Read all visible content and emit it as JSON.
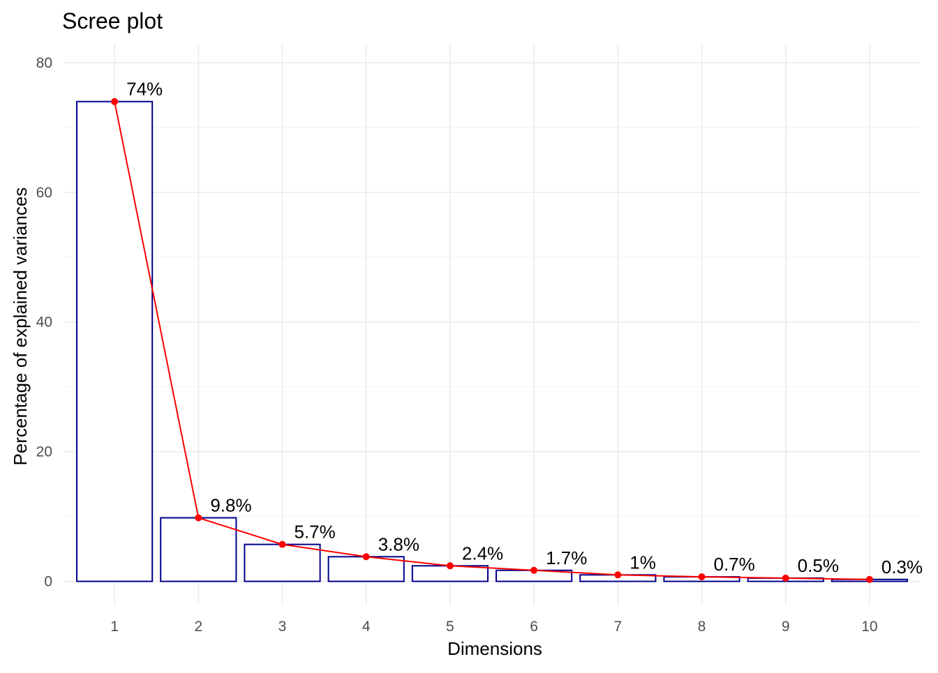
{
  "chart_data": {
    "type": "bar",
    "title": "Scree plot",
    "xlabel": "Dimensions",
    "ylabel": "Percentage of explained variances",
    "categories": [
      "1",
      "2",
      "3",
      "4",
      "5",
      "6",
      "7",
      "8",
      "9",
      "10"
    ],
    "values": [
      74.0,
      9.8,
      5.7,
      3.8,
      2.4,
      1.7,
      1.0,
      0.7,
      0.5,
      0.3
    ],
    "data_labels": [
      "74%",
      "9.8%",
      "5.7%",
      "3.8%",
      "2.4%",
      "1.7%",
      "1%",
      "0.7%",
      "0.5%",
      "0.3%"
    ],
    "ylim": [
      -3.7,
      83
    ],
    "yticks": [
      0,
      20,
      40,
      60,
      80
    ],
    "ytick_labels": [
      "0",
      "20",
      "40",
      "60",
      "80"
    ],
    "grid": true,
    "legend": "none",
    "overlay": "line-with-points",
    "colors": {
      "bar_outline": "#00008b",
      "bar_fill": "#ffffff",
      "line": "#ff0000",
      "point": "#ff0000"
    }
  }
}
